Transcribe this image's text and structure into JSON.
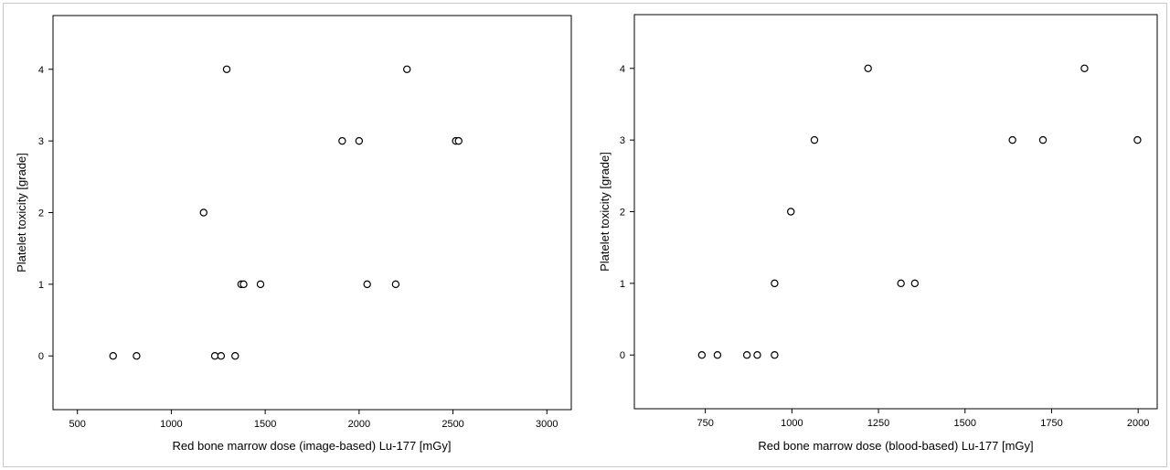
{
  "chart_data": [
    {
      "type": "scatter",
      "xlabel": "Red bone marrow dose (image-based) Lu-177 [mGy]",
      "ylabel": "Platelet toxicity [grade]",
      "xlim": [
        370,
        3130
      ],
      "ylim": [
        -0.75,
        4.75
      ],
      "xticks": [
        500,
        1000,
        1500,
        2000,
        2500,
        3000
      ],
      "yticks": [
        0,
        1,
        2,
        3,
        4
      ],
      "grid": false,
      "marker": "open-circle",
      "points": [
        {
          "x": 690,
          "y": 0
        },
        {
          "x": 815,
          "y": 0
        },
        {
          "x": 1232,
          "y": 0
        },
        {
          "x": 1265,
          "y": 0
        },
        {
          "x": 1340,
          "y": 0
        },
        {
          "x": 1372,
          "y": 1
        },
        {
          "x": 1385,
          "y": 1
        },
        {
          "x": 1475,
          "y": 1
        },
        {
          "x": 2043,
          "y": 1
        },
        {
          "x": 2195,
          "y": 1
        },
        {
          "x": 1172,
          "y": 2
        },
        {
          "x": 1910,
          "y": 3
        },
        {
          "x": 2000,
          "y": 3
        },
        {
          "x": 2515,
          "y": 3
        },
        {
          "x": 2530,
          "y": 3
        },
        {
          "x": 1295,
          "y": 4
        },
        {
          "x": 2255,
          "y": 4
        }
      ]
    },
    {
      "type": "scatter",
      "xlabel": "Red bone marrow dose (blood-based) Lu-177 [mGy]",
      "ylabel": "Platelet toxicity [grade]",
      "xlim": [
        545,
        2055
      ],
      "ylim": [
        -0.75,
        4.75
      ],
      "xticks": [
        750,
        1000,
        1250,
        1500,
        1750,
        2000
      ],
      "yticks": [
        0,
        1,
        2,
        3,
        4
      ],
      "grid": false,
      "marker": "open-circle",
      "points": [
        {
          "x": 740,
          "y": 0
        },
        {
          "x": 785,
          "y": 0
        },
        {
          "x": 870,
          "y": 0
        },
        {
          "x": 900,
          "y": 0
        },
        {
          "x": 950,
          "y": 0
        },
        {
          "x": 950,
          "y": 1
        },
        {
          "x": 1315,
          "y": 1
        },
        {
          "x": 1355,
          "y": 1
        },
        {
          "x": 997,
          "y": 2
        },
        {
          "x": 1065,
          "y": 3
        },
        {
          "x": 1637,
          "y": 3
        },
        {
          "x": 1725,
          "y": 3
        },
        {
          "x": 1998,
          "y": 3
        },
        {
          "x": 1220,
          "y": 4
        },
        {
          "x": 1845,
          "y": 4
        }
      ]
    }
  ]
}
